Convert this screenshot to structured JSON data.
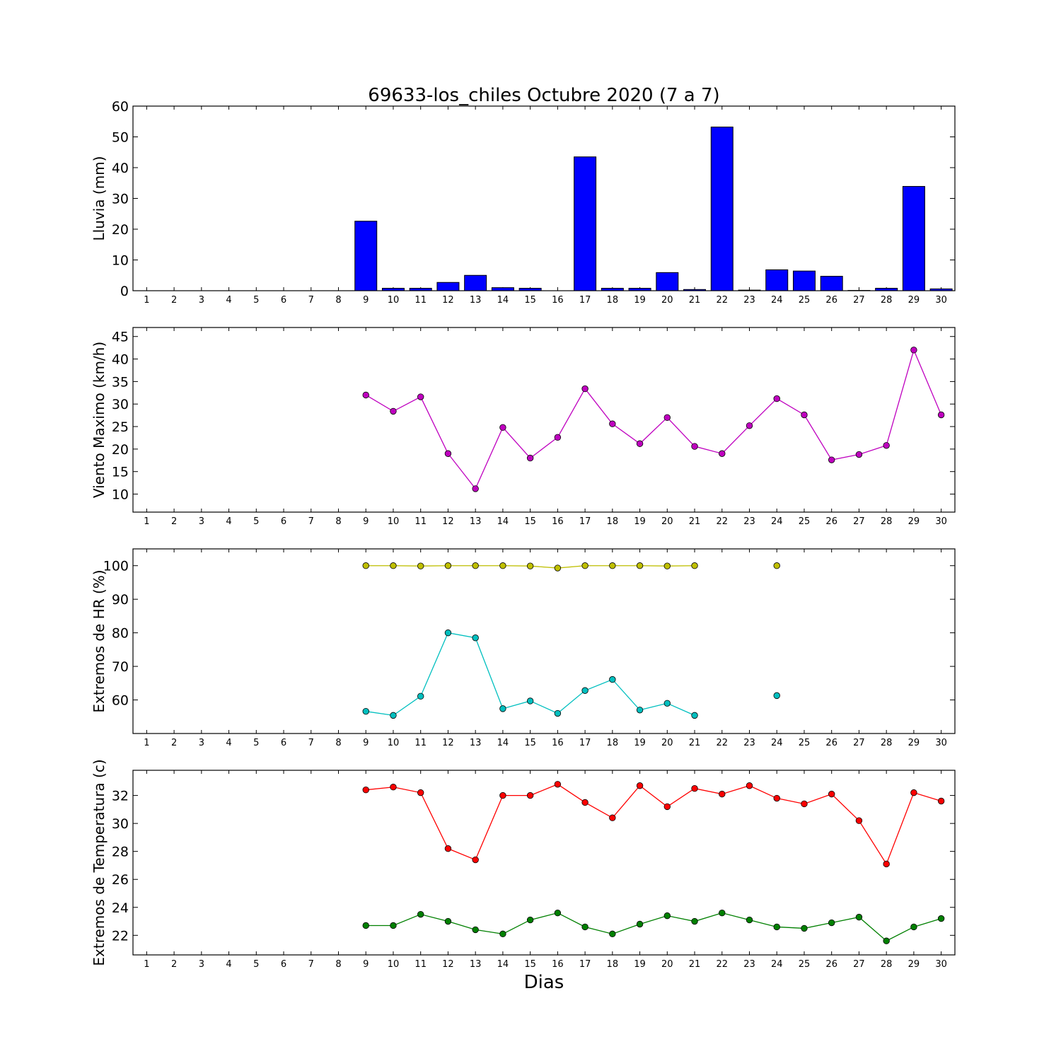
{
  "title": "69633-los_chiles Octubre 2020  (7 a 7)",
  "xlabel": "Dias",
  "days": [
    1,
    2,
    3,
    4,
    5,
    6,
    7,
    8,
    9,
    10,
    11,
    12,
    13,
    14,
    15,
    16,
    17,
    18,
    19,
    20,
    21,
    22,
    23,
    24,
    25,
    26,
    27,
    28,
    29,
    30
  ],
  "chart_data": [
    {
      "type": "bar",
      "ylabel": "Lluvia (mm)",
      "ylim": [
        0,
        60
      ],
      "yticks": [
        0,
        10,
        20,
        30,
        40,
        50,
        60
      ],
      "xlim": [
        0.5,
        30.5
      ],
      "bar_color": "#0000ff",
      "categories": [
        1,
        2,
        3,
        4,
        5,
        6,
        7,
        8,
        9,
        10,
        11,
        12,
        13,
        14,
        15,
        16,
        17,
        18,
        19,
        20,
        21,
        22,
        23,
        24,
        25,
        26,
        27,
        28,
        29,
        30
      ],
      "values": [
        0,
        0,
        0,
        0,
        0,
        0,
        0,
        0,
        22.6,
        0.8,
        0.8,
        2.7,
        5.0,
        1.0,
        0.8,
        0,
        43.5,
        0.8,
        0.8,
        5.9,
        0.4,
        53.2,
        0.2,
        6.8,
        6.4,
        4.7,
        0.1,
        0.8,
        33.9,
        0.6
      ]
    },
    {
      "type": "line",
      "ylabel": "Viento Maximo (km/h)",
      "ylim": [
        6,
        47
      ],
      "yticks": [
        10,
        15,
        20,
        25,
        30,
        35,
        40,
        45
      ],
      "xlim": [
        0.5,
        30.5
      ],
      "series": [
        {
          "color": "#bf00bf",
          "x": [
            9,
            10,
            11,
            12,
            13,
            14,
            15,
            16,
            17,
            18,
            19,
            20,
            21,
            22,
            23,
            24,
            25,
            26,
            27,
            28,
            29,
            30
          ],
          "y": [
            32.0,
            28.4,
            31.6,
            19.0,
            11.2,
            24.8,
            18.0,
            22.6,
            33.4,
            25.6,
            21.2,
            27.0,
            20.6,
            19.0,
            25.2,
            31.2,
            27.6,
            17.6,
            18.8,
            20.8,
            42.0,
            27.6
          ]
        }
      ]
    },
    {
      "type": "line",
      "ylabel": "Extremos de HR (%)",
      "ylim": [
        50,
        105
      ],
      "yticks": [
        60,
        70,
        80,
        90,
        100
      ],
      "xlim": [
        0.5,
        30.5
      ],
      "series": [
        {
          "color": "#bfbf00",
          "x": [
            9,
            10,
            11,
            12,
            13,
            14,
            15,
            16,
            17,
            18,
            19,
            20,
            21,
            24
          ],
          "y": [
            100,
            100,
            99.9,
            100,
            100,
            100,
            99.9,
            99.3,
            100,
            100,
            100,
            99.9,
            100,
            100
          ],
          "segments": [
            [
              9,
              10,
              11,
              12,
              13,
              14,
              15,
              16,
              17,
              18,
              19,
              20,
              21
            ],
            [
              24
            ]
          ]
        },
        {
          "color": "#00bfbf",
          "x": [
            9,
            10,
            11,
            12,
            13,
            14,
            15,
            16,
            17,
            18,
            19,
            20,
            21,
            24
          ],
          "y": [
            56.6,
            55.4,
            61.1,
            80.0,
            78.5,
            57.4,
            59.7,
            56.0,
            62.8,
            66.1,
            57.0,
            59.0,
            55.4,
            61.3
          ],
          "segments": [
            [
              9,
              10,
              11,
              12,
              13,
              14,
              15,
              16,
              17,
              18,
              19,
              20,
              21
            ],
            [
              24
            ]
          ]
        }
      ]
    },
    {
      "type": "line",
      "ylabel": "Extremos de Temperatura (c)",
      "ylim": [
        20.6,
        33.8
      ],
      "yticks": [
        22,
        24,
        26,
        28,
        30,
        32
      ],
      "xlim": [
        0.5,
        30.5
      ],
      "series": [
        {
          "color": "#ff0000",
          "x": [
            9,
            10,
            11,
            12,
            13,
            14,
            15,
            16,
            17,
            18,
            19,
            20,
            21,
            22,
            23,
            24,
            25,
            26,
            27,
            28,
            29,
            30
          ],
          "y": [
            32.4,
            32.6,
            32.2,
            28.2,
            27.4,
            32.0,
            32.0,
            32.8,
            31.5,
            30.4,
            32.7,
            31.2,
            32.5,
            32.1,
            32.7,
            31.8,
            31.4,
            32.1,
            30.2,
            27.1,
            32.2,
            31.6
          ]
        },
        {
          "color": "#008000",
          "x": [
            9,
            10,
            11,
            12,
            13,
            14,
            15,
            16,
            17,
            18,
            19,
            20,
            21,
            22,
            23,
            24,
            25,
            26,
            27,
            28,
            29,
            30
          ],
          "y": [
            22.7,
            22.7,
            23.5,
            23.0,
            22.4,
            22.1,
            23.1,
            23.6,
            22.6,
            22.1,
            22.8,
            23.4,
            23.0,
            23.6,
            23.1,
            22.6,
            22.5,
            22.9,
            23.3,
            21.6,
            22.6,
            23.2
          ]
        }
      ]
    }
  ]
}
